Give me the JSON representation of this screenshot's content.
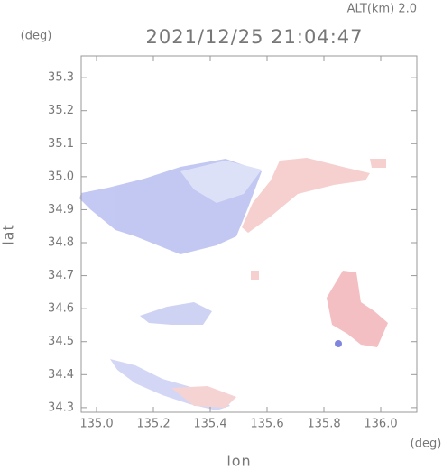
{
  "chart_data": {
    "type": "map",
    "title": "2021/12/25 21:04:47",
    "altitude_label": "ALT(km) 2.0",
    "x_label": "lon",
    "x_unit": "(deg)",
    "y_label": "lat",
    "y_unit": "(deg)",
    "xlim": [
      134.946,
      136.127
    ],
    "xticks": [
      {
        "value": 135.0,
        "label": "135.0"
      },
      135.2,
      135.4,
      135.6,
      135.8,
      {
        "value": 136.0,
        "label": "136.0"
      }
    ],
    "ylim": [
      34.286,
      35.366
    ],
    "yticks": [
      35.3,
      35.2,
      35.1,
      {
        "value": 35.0,
        "label": "35.0"
      },
      34.9,
      34.8,
      34.7,
      34.6,
      34.5,
      34.4,
      34.3
    ]
  }
}
